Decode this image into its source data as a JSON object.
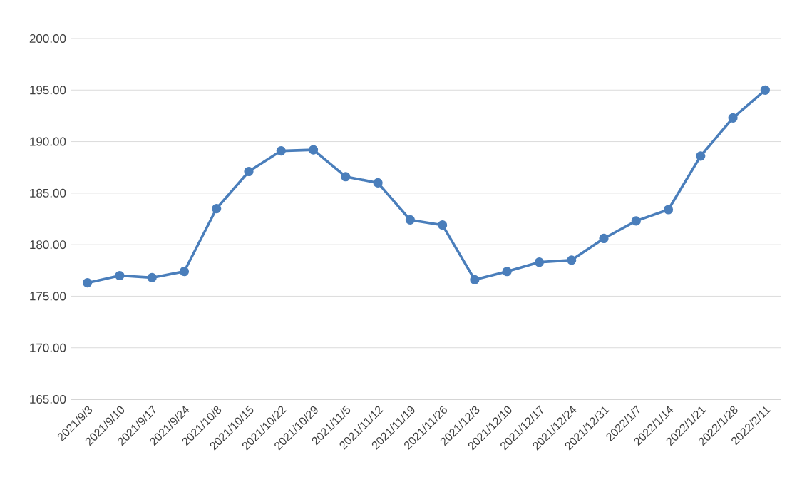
{
  "chart_data": {
    "type": "line",
    "categories": [
      "2021/9/3",
      "2021/9/10",
      "2021/9/17",
      "2021/9/24",
      "2021/10/8",
      "2021/10/15",
      "2021/10/22",
      "2021/10/29",
      "2021/11/5",
      "2021/11/12",
      "2021/11/19",
      "2021/11/26",
      "2021/12/3",
      "2021/12/10",
      "2021/12/17",
      "2021/12/24",
      "2021/12/31",
      "2022/1/7",
      "2022/1/14",
      "2022/1/21",
      "2022/1/28",
      "2022/2/11"
    ],
    "series": [
      {
        "color": "#4a7ebb",
        "values": [
          176.3,
          177.0,
          176.8,
          177.4,
          183.5,
          187.1,
          189.1,
          189.2,
          186.6,
          186.0,
          182.4,
          181.9,
          176.6,
          177.4,
          178.3,
          178.5,
          180.6,
          182.3,
          183.4,
          188.6,
          192.3,
          195.0
        ]
      }
    ],
    "ylim": [
      165,
      200
    ],
    "yticks": [
      {
        "value": 165,
        "label": "165.00"
      },
      {
        "value": 170,
        "label": "170.00"
      },
      {
        "value": 175,
        "label": "175.00"
      },
      {
        "value": 180,
        "label": "180.00"
      },
      {
        "value": 185,
        "label": "185.00"
      },
      {
        "value": 190,
        "label": "190.00"
      },
      {
        "value": 195,
        "label": "195.00"
      },
      {
        "value": 200,
        "label": "200.00"
      }
    ],
    "grid": "y",
    "marker": "circle",
    "line_style": "solid"
  }
}
